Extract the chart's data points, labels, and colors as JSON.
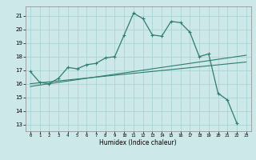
{
  "xlabel": "Humidex (Indice chaleur)",
  "bg_color": "#cce8e8",
  "line_color": "#2e7d6e",
  "grid_color": "#aad4d4",
  "xlim": [
    -0.5,
    23.5
  ],
  "ylim": [
    12.5,
    21.7
  ],
  "yticks": [
    13,
    14,
    15,
    16,
    17,
    18,
    19,
    20,
    21
  ],
  "xticks": [
    0,
    1,
    2,
    3,
    4,
    5,
    6,
    7,
    8,
    9,
    10,
    11,
    12,
    13,
    14,
    15,
    16,
    17,
    18,
    19,
    20,
    21,
    22,
    23
  ],
  "line1_x": [
    0,
    1,
    2,
    3,
    4,
    5,
    6,
    7,
    8,
    9,
    10,
    11,
    12,
    13,
    14,
    15,
    16,
    17,
    18,
    19,
    20,
    21,
    22
  ],
  "line1_y": [
    16.9,
    16.1,
    16.0,
    16.4,
    17.2,
    17.1,
    17.4,
    17.5,
    17.9,
    18.0,
    19.6,
    21.2,
    20.8,
    19.6,
    19.5,
    20.6,
    20.5,
    19.8,
    18.0,
    18.2,
    15.3,
    14.8,
    13.1
  ],
  "line2_x": [
    0,
    23
  ],
  "line2_y": [
    16.0,
    17.6
  ],
  "line3_x": [
    0,
    23
  ],
  "line3_y": [
    15.8,
    18.1
  ]
}
